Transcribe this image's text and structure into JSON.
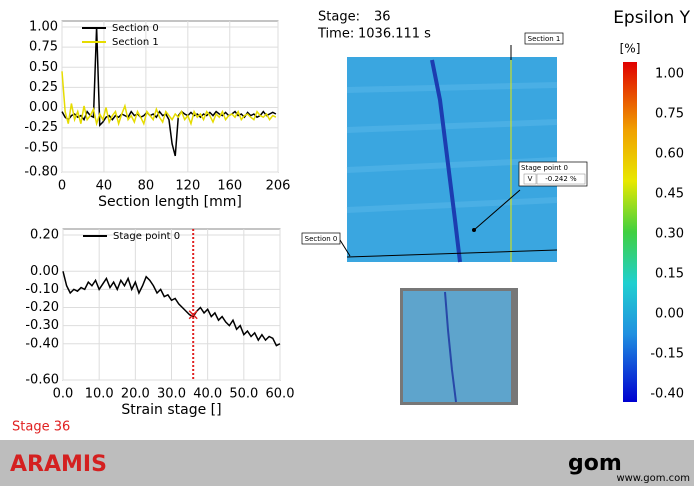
{
  "chart_data": [
    {
      "type": "line",
      "xlabel": "Section length [mm]",
      "x": [
        0,
        3,
        6,
        9,
        12,
        15,
        18,
        21,
        24,
        27,
        30,
        33,
        36,
        39,
        42,
        45,
        48,
        51,
        54,
        57,
        60,
        63,
        66,
        69,
        72,
        75,
        78,
        81,
        84,
        87,
        90,
        93,
        96,
        99,
        102,
        105,
        108,
        111,
        114,
        117,
        120,
        123,
        126,
        129,
        132,
        135,
        138,
        141,
        144,
        147,
        150,
        153,
        156,
        159,
        162,
        165,
        168,
        171,
        174,
        177,
        180,
        183,
        186,
        189,
        192,
        195,
        198,
        201,
        204
      ],
      "series": [
        {
          "name": "Section 0",
          "color": "#000000",
          "values": [
            -0.05,
            -0.12,
            -0.15,
            -0.1,
            -0.08,
            -0.12,
            -0.1,
            -0.15,
            -0.05,
            -0.1,
            -0.12,
            1.0,
            -0.22,
            -0.18,
            -0.12,
            -0.1,
            -0.15,
            -0.1,
            -0.12,
            -0.08,
            -0.1,
            -0.12,
            -0.05,
            -0.1,
            -0.08,
            -0.12,
            -0.1,
            -0.06,
            -0.1,
            -0.08,
            -0.12,
            -0.05,
            -0.1,
            -0.08,
            -0.15,
            -0.45,
            -0.6,
            -0.1,
            -0.05,
            -0.08,
            -0.1,
            -0.06,
            -0.1,
            -0.08,
            -0.12,
            -0.08,
            -0.1,
            -0.06,
            -0.1,
            -0.05,
            -0.08,
            -0.1,
            -0.06,
            -0.1,
            -0.08,
            -0.05,
            -0.1,
            -0.08,
            -0.12,
            -0.06,
            -0.1,
            -0.08,
            -0.12,
            -0.1,
            -0.05,
            -0.1,
            -0.08,
            -0.06,
            -0.08
          ]
        },
        {
          "name": "Section 1",
          "color": "#e6dc00",
          "values": [
            0.45,
            -0.05,
            -0.2,
            0.05,
            -0.15,
            -0.05,
            -0.2,
            0.02,
            -0.15,
            -0.1,
            -0.02,
            -0.2,
            -0.08,
            -0.15,
            0.0,
            -0.18,
            -0.1,
            -0.05,
            -0.2,
            -0.08,
            0.02,
            -0.15,
            -0.1,
            -0.18,
            -0.05,
            -0.12,
            -0.2,
            -0.05,
            -0.1,
            -0.15,
            -0.02,
            -0.12,
            -0.18,
            -0.05,
            -0.1,
            -0.15,
            -0.08,
            -0.12,
            -0.05,
            -0.15,
            -0.1,
            -0.2,
            -0.05,
            -0.12,
            -0.08,
            -0.15,
            -0.05,
            -0.1,
            -0.18,
            -0.08,
            -0.12,
            -0.05,
            -0.15,
            -0.1,
            -0.08,
            -0.12,
            -0.05,
            -0.15,
            -0.1,
            -0.08,
            -0.12,
            -0.15,
            -0.05,
            -0.1,
            -0.12,
            -0.08,
            -0.15,
            -0.1,
            -0.12
          ]
        }
      ],
      "xlim": [
        0,
        206
      ],
      "xticks": [
        0,
        40,
        80,
        120,
        160,
        206
      ],
      "ylim": [
        -0.8,
        1.0
      ],
      "yticks": [
        {
          "value": 1.0,
          "label": "1.00"
        },
        {
          "value": 0.75,
          "label": "0.75"
        },
        {
          "value": 0.5,
          "label": "0.50"
        },
        {
          "value": 0.25,
          "label": "0.25"
        },
        {
          "value": 0,
          "label": "0.00"
        },
        {
          "value": -0.25,
          "label": "-0.25"
        },
        {
          "value": -0.5,
          "label": "-0.50"
        },
        {
          "value": -0.8,
          "label": "-0.80"
        }
      ],
      "grid": true
    },
    {
      "type": "line",
      "xlabel": "Strain stage []",
      "x": [
        0,
        1,
        2,
        3,
        4,
        5,
        6,
        7,
        8,
        9,
        10,
        11,
        12,
        13,
        14,
        15,
        16,
        17,
        18,
        19,
        20,
        21,
        22,
        23,
        24,
        25,
        26,
        27,
        28,
        29,
        30,
        31,
        32,
        33,
        34,
        35,
        36,
        37,
        38,
        39,
        40,
        41,
        42,
        43,
        44,
        45,
        46,
        47,
        48,
        49,
        50,
        51,
        52,
        53,
        54,
        55,
        56,
        57,
        58,
        59,
        60
      ],
      "series": [
        {
          "name": "Stage point 0",
          "color": "#000000",
          "values": [
            0,
            -0.08,
            -0.12,
            -0.1,
            -0.11,
            -0.09,
            -0.1,
            -0.06,
            -0.08,
            -0.05,
            -0.1,
            -0.07,
            -0.04,
            -0.09,
            -0.06,
            -0.1,
            -0.05,
            -0.08,
            -0.04,
            -0.1,
            -0.06,
            -0.12,
            -0.08,
            -0.03,
            -0.05,
            -0.08,
            -0.12,
            -0.1,
            -0.14,
            -0.13,
            -0.16,
            -0.15,
            -0.18,
            -0.2,
            -0.22,
            -0.24,
            -0.25,
            -0.22,
            -0.2,
            -0.23,
            -0.21,
            -0.25,
            -0.23,
            -0.27,
            -0.25,
            -0.28,
            -0.3,
            -0.27,
            -0.32,
            -0.3,
            -0.35,
            -0.33,
            -0.36,
            -0.34,
            -0.38,
            -0.35,
            -0.38,
            -0.36,
            -0.37,
            -0.41,
            -0.4
          ]
        }
      ],
      "marker": {
        "x": 36,
        "y": -0.24,
        "color": "#e02020"
      },
      "xlim": [
        0,
        60
      ],
      "xticks": [
        {
          "value": 0,
          "label": "0.0"
        },
        {
          "value": 10,
          "label": "10.0"
        },
        {
          "value": 20,
          "label": "20.0"
        },
        {
          "value": 30,
          "label": "30.0"
        },
        {
          "value": 40,
          "label": "40.0"
        },
        {
          "value": 50,
          "label": "50.0"
        },
        {
          "value": 60,
          "label": "60.0"
        }
      ],
      "ylim": [
        -0.6,
        0.2
      ],
      "yticks": [
        {
          "value": 0.2,
          "label": "0.20"
        },
        {
          "value": 0,
          "label": "0.00"
        },
        {
          "value": -0.1,
          "label": "-0.10"
        },
        {
          "value": -0.2,
          "label": "-0.20"
        },
        {
          "value": -0.3,
          "label": "-0.30"
        },
        {
          "value": -0.4,
          "label": "-0.40"
        },
        {
          "value": -0.6,
          "label": "-0.60"
        }
      ],
      "grid": true
    }
  ],
  "stage": {
    "label": "Stage:",
    "value": "36"
  },
  "time": {
    "label": "Time:",
    "value": "1036.111 s"
  },
  "colorbar": {
    "title": "Epsilon Y",
    "unit": "[%]",
    "labels": [
      "1.00",
      "0.75",
      "0.60",
      "0.45",
      "0.30",
      "0.15",
      "0.00",
      "-0.15",
      "-0.40"
    ]
  },
  "image": {
    "section1": "Section 1",
    "section0": "Section 0",
    "stage_point": "Stage point 0",
    "component": "V",
    "reading": "-0.242 %"
  },
  "stage_status": "Stage 36",
  "footer": {
    "product": "ARAMIS",
    "logo": "gom",
    "url": "www.gom.com"
  }
}
